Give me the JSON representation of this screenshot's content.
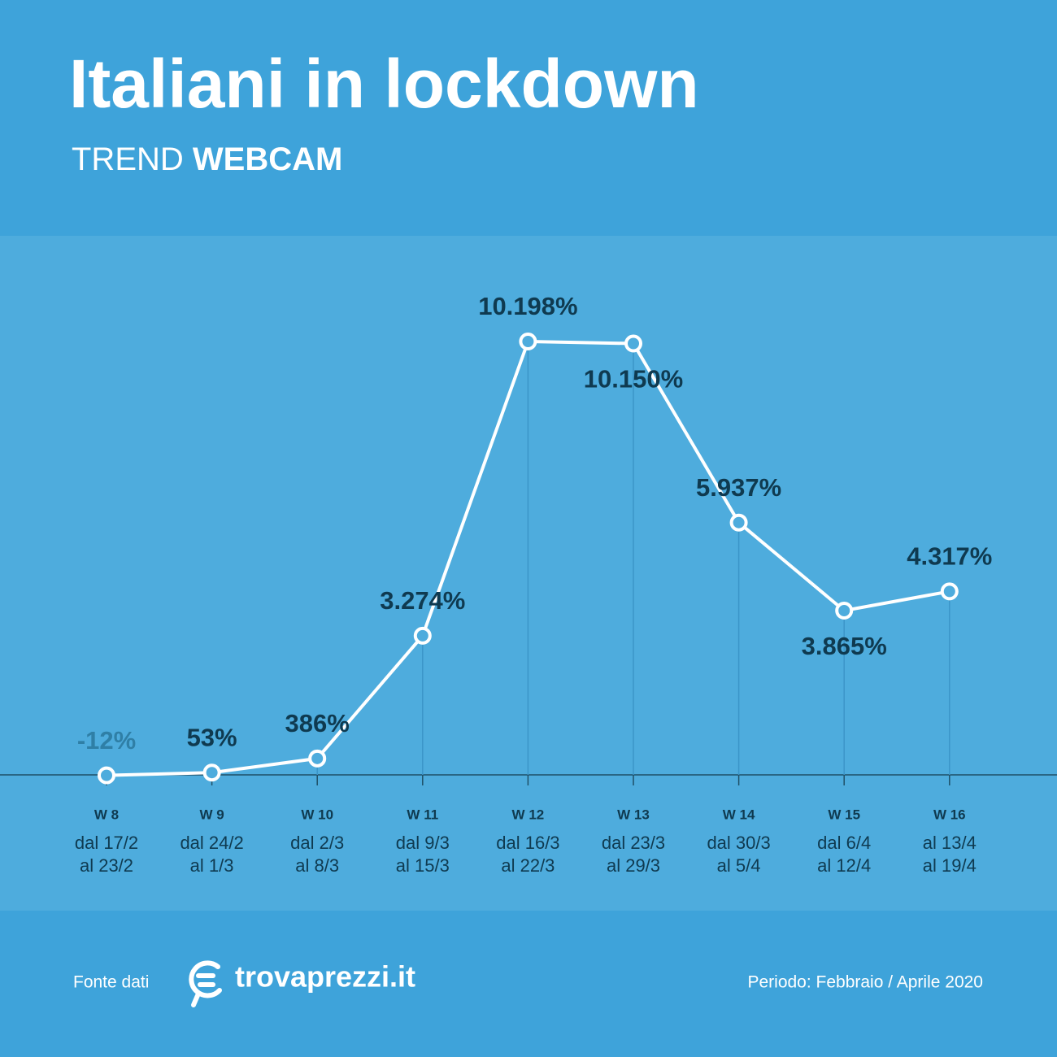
{
  "chart_data": {
    "type": "line",
    "title": "Italiani in lockdown",
    "subtitle": {
      "light": "TREND",
      "bold": "WEBCAM"
    },
    "categories": [
      "W 8",
      "W 9",
      "W 10",
      "W 11",
      "W 12",
      "W 13",
      "W 14",
      "W 15",
      "W 16"
    ],
    "periods": [
      [
        "dal 17/2",
        "al 23/2"
      ],
      [
        "dal 24/2",
        "al 1/3"
      ],
      [
        "dal 2/3",
        "al 8/3"
      ],
      [
        "dal 9/3",
        "al 15/3"
      ],
      [
        "dal 16/3",
        "al 22/3"
      ],
      [
        "dal 23/3",
        "al 29/3"
      ],
      [
        "dal 30/3",
        "al 5/4"
      ],
      [
        "dal 6/4",
        "al 12/4"
      ],
      [
        "al 13/4",
        "al 19/4"
      ]
    ],
    "values": [
      -12,
      53,
      386,
      3274,
      10198,
      10150,
      5937,
      3865,
      4317
    ],
    "value_labels": [
      "-12%",
      "53%",
      "386%",
      "3.274%",
      "10.198%",
      "10.150%",
      "5.937%",
      "3.865%",
      "4.317%"
    ],
    "color": "#ffffff",
    "source_label": "Fonte dati",
    "source": "trovaprezzi.it",
    "period_note": "Periodo: Febbraio / Aprile 2020"
  }
}
